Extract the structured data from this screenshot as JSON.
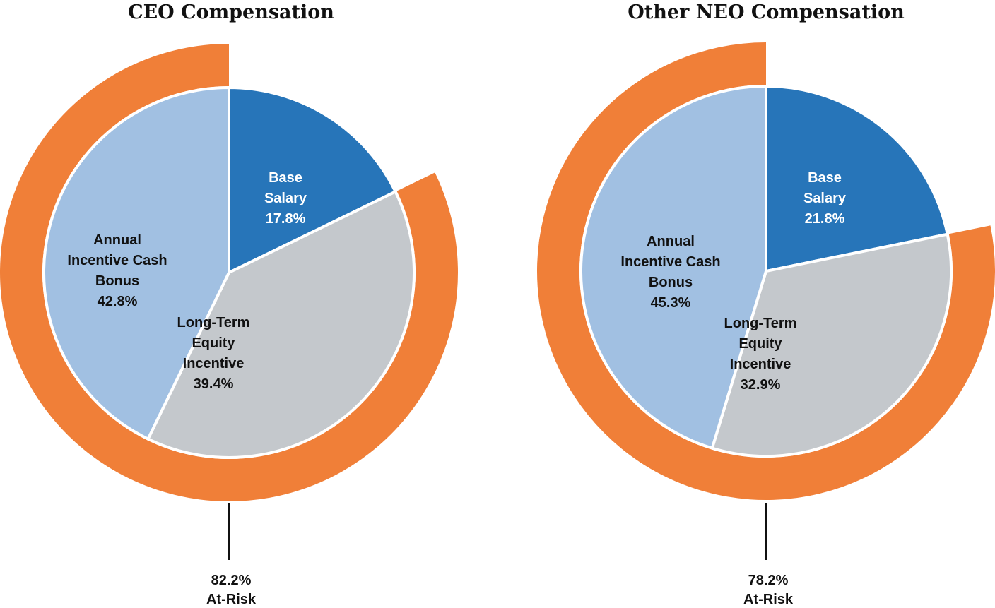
{
  "chart_data": [
    {
      "type": "pie",
      "title": "CEO Compensation",
      "series": [
        {
          "name": "Base Salary",
          "label_lines": [
            "Base",
            "Salary"
          ],
          "value": 17.8,
          "value_label": "17.8%",
          "color": "#2775b9",
          "text_color": "#ffffff"
        },
        {
          "name": "Long-Term Equity Incentive",
          "label_lines": [
            "Long-Term",
            "Equity",
            "Incentive"
          ],
          "value": 39.4,
          "value_label": "39.4%",
          "color": "#c4c8cc",
          "text_color": "#111111"
        },
        {
          "name": "Annual Incentive Cash Bonus",
          "label_lines": [
            "Annual",
            "Incentive Cash",
            "Bonus"
          ],
          "value": 42.8,
          "value_label": "42.8%",
          "color": "#a1c0e2",
          "text_color": "#111111"
        }
      ],
      "at_risk": {
        "value": 82.2,
        "value_label": "82.2%",
        "label": "At-Risk",
        "color": "#f07f38"
      }
    },
    {
      "type": "pie",
      "title": "Other NEO Compensation",
      "series": [
        {
          "name": "Base Salary",
          "label_lines": [
            "Base",
            "Salary"
          ],
          "value": 21.8,
          "value_label": "21.8%",
          "color": "#2775b9",
          "text_color": "#ffffff"
        },
        {
          "name": "Long-Term Equity Incentive",
          "label_lines": [
            "Long-Term",
            "Equity",
            "Incentive"
          ],
          "value": 32.9,
          "value_label": "32.9%",
          "color": "#c4c8cc",
          "text_color": "#111111"
        },
        {
          "name": "Annual Incentive Cash Bonus",
          "label_lines": [
            "Annual",
            "Incentive Cash",
            "Bonus"
          ],
          "value": 45.3,
          "value_label": "45.3%",
          "color": "#a1c0e2",
          "text_color": "#111111"
        }
      ],
      "at_risk": {
        "value": 78.2,
        "value_label": "78.2%",
        "label": "At-Risk",
        "color": "#f07f38"
      }
    }
  ]
}
